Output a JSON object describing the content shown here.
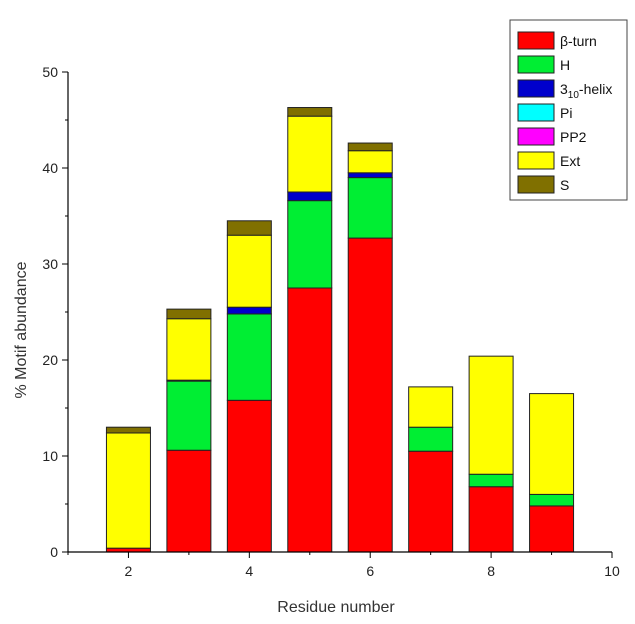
{
  "chart_data": {
    "type": "bar",
    "stacked": true,
    "xlabel": "Residue number",
    "ylabel": "% Motif abundance",
    "xlim": [
      1,
      10
    ],
    "ylim": [
      0,
      50
    ],
    "xticks": [
      2,
      4,
      6,
      8,
      10
    ],
    "yticks": [
      0,
      10,
      20,
      30,
      40,
      50
    ],
    "grid": false,
    "legend_position": "top-right",
    "categories": [
      2,
      3,
      4,
      5,
      6,
      7,
      8,
      9
    ],
    "series": [
      {
        "name": "β-turn",
        "label_main": "β-turn",
        "label_sub": "",
        "label_tail": "",
        "color": "#ff0000",
        "values": [
          0.4,
          10.6,
          15.8,
          27.5,
          32.7,
          10.5,
          6.8,
          4.8
        ]
      },
      {
        "name": "H",
        "label_main": "H",
        "label_sub": "",
        "label_tail": "",
        "color": "#00ee33",
        "values": [
          0,
          7.2,
          9.0,
          9.1,
          6.3,
          2.5,
          1.3,
          1.2
        ]
      },
      {
        "name": "3₁₀-helix",
        "label_main": "3",
        "label_sub": "10",
        "label_tail": "-helix",
        "color": "#0000cc",
        "values": [
          0,
          0.1,
          0.7,
          0.9,
          0.5,
          0,
          0,
          0
        ]
      },
      {
        "name": "Pi",
        "label_main": "Pi",
        "label_sub": "",
        "label_tail": "",
        "color": "#00ffff",
        "values": [
          0,
          0,
          0,
          0,
          0,
          0,
          0,
          0
        ]
      },
      {
        "name": "PP2",
        "label_main": "PP2",
        "label_sub": "",
        "label_tail": "",
        "color": "#ff00ff",
        "values": [
          0,
          0,
          0,
          0,
          0,
          0,
          0,
          0
        ]
      },
      {
        "name": "Ext",
        "label_main": "Ext",
        "label_sub": "",
        "label_tail": "",
        "color": "#ffff00",
        "values": [
          12.0,
          6.4,
          7.5,
          7.9,
          2.3,
          4.2,
          12.3,
          10.5
        ]
      },
      {
        "name": "S",
        "label_main": "S",
        "label_sub": "",
        "label_tail": "",
        "color": "#807000",
        "values": [
          0.6,
          1.0,
          1.5,
          0.9,
          0.8,
          0,
          0,
          0
        ]
      }
    ]
  }
}
